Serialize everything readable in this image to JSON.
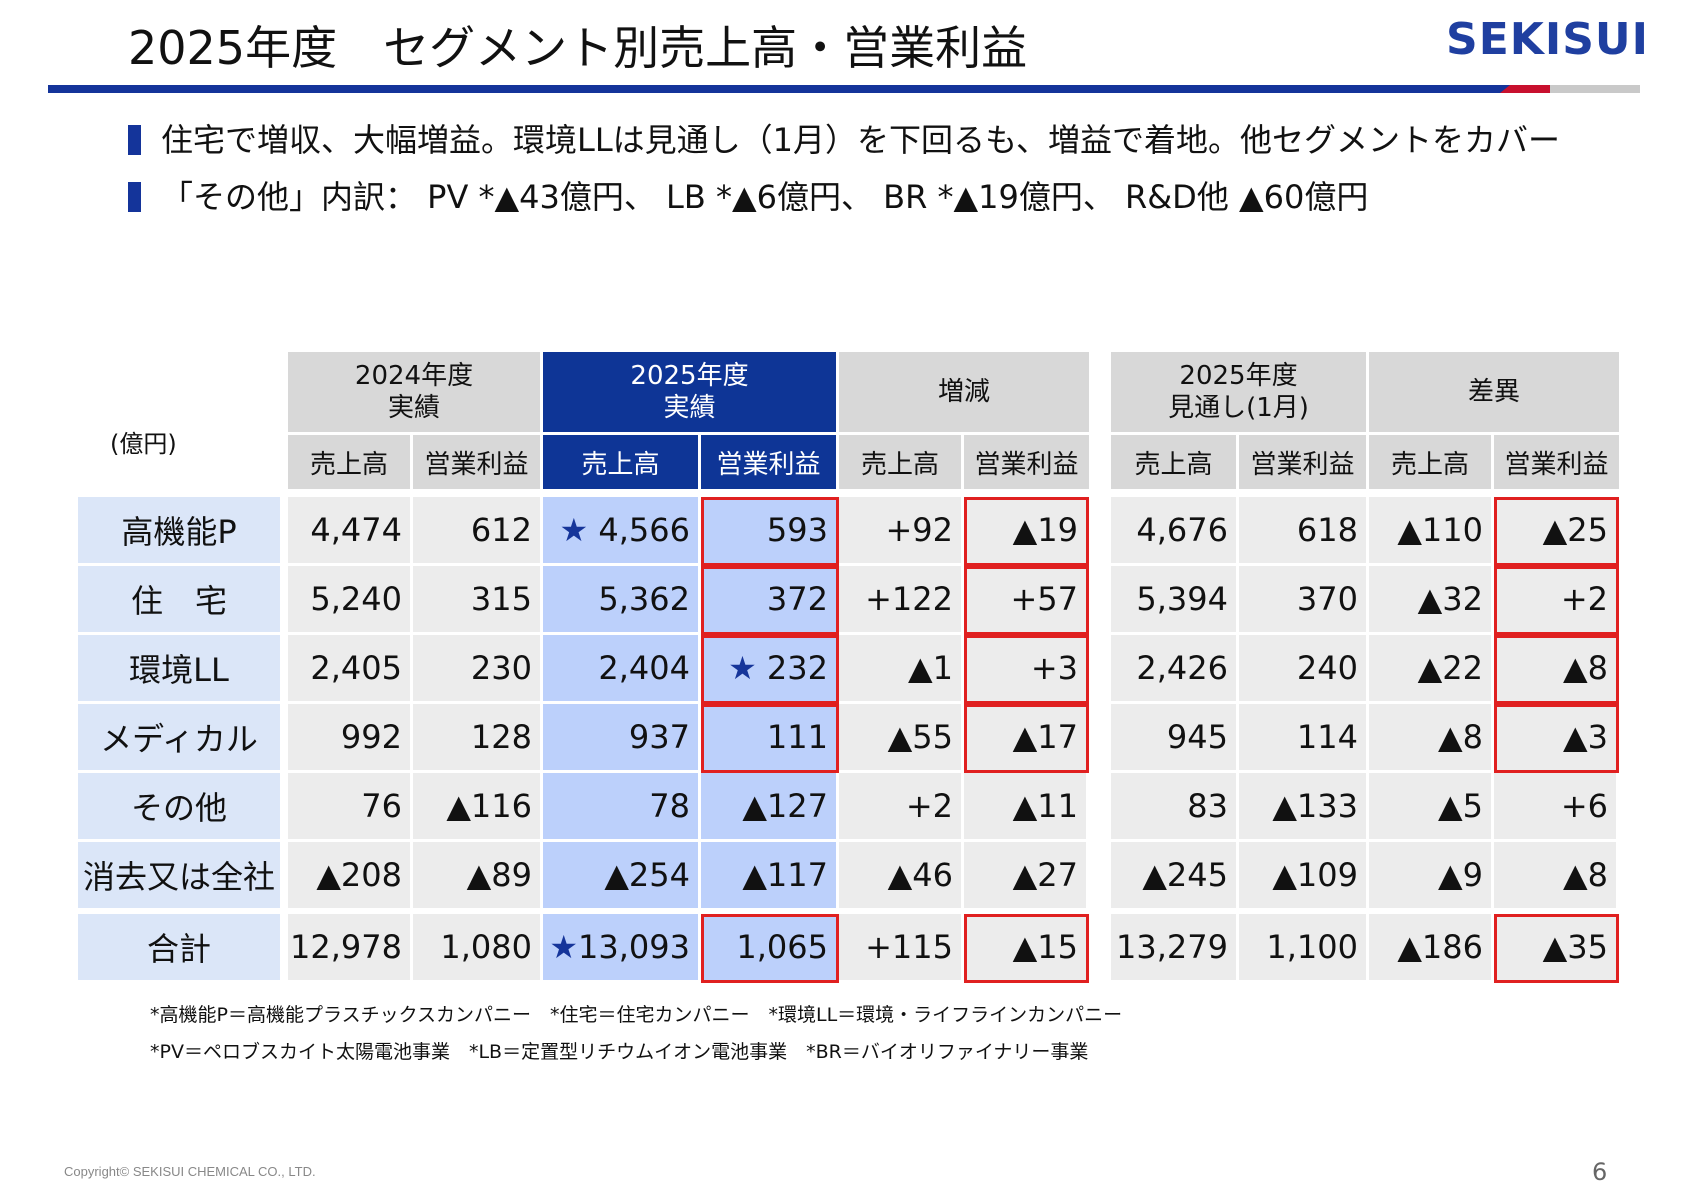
{
  "header": {
    "title": "2025年度　セグメント別売上高・営業利益",
    "logo": "SEKISUI"
  },
  "bullets": [
    "住宅で増収、大幅増益。環境LLは見通し（1月）を下回るも、増益で着地。他セグメントをカバー",
    "「その他」内訳：  PV *▲43億円、 LB *▲6億円、 BR *▲19億円、 R&D他 ▲60億円"
  ],
  "table": {
    "unit": "(億円)",
    "groups": [
      "2024年度\n実績",
      "2025年度\n実績",
      "増減",
      "2025年度\n見通し(1月)",
      "差異"
    ],
    "subheaders": [
      "売上高",
      "営業利益",
      "売上高",
      "営業利益",
      "売上高",
      "営業利益",
      "売上高",
      "営業利益",
      "売上高",
      "営業利益"
    ],
    "rows": [
      {
        "label": "高機能P",
        "v": [
          "4,474",
          "612",
          "★ 4,566",
          "593",
          "+92",
          "▲19",
          "4,676",
          "618",
          "▲110",
          "▲25"
        ]
      },
      {
        "label": "住　宅",
        "v": [
          "5,240",
          "315",
          "5,362",
          "372",
          "+122",
          "+57",
          "5,394",
          "370",
          "▲32",
          "+2"
        ]
      },
      {
        "label": "環境LL",
        "v": [
          "2,405",
          "230",
          "2,404",
          "★ 232",
          "▲1",
          "+3",
          "2,426",
          "240",
          "▲22",
          "▲8"
        ]
      },
      {
        "label": "メディカル",
        "v": [
          "992",
          "128",
          "937",
          "111",
          "▲55",
          "▲17",
          "945",
          "114",
          "▲8",
          "▲3"
        ]
      },
      {
        "label": "その他",
        "v": [
          "76",
          "▲116",
          "78",
          "▲127",
          "+2",
          "▲11",
          "83",
          "▲133",
          "▲5",
          "+6"
        ]
      },
      {
        "label": "消去又は全社",
        "v": [
          "▲208",
          "▲89",
          "▲254",
          "▲117",
          "▲46",
          "▲27",
          "▲245",
          "▲109",
          "▲9",
          "▲8"
        ]
      },
      {
        "label": "合計",
        "v": [
          "12,978",
          "1,080",
          "★13,093",
          "1,065",
          "+115",
          "▲15",
          "13,279",
          "1,100",
          "▲186",
          "▲35"
        ]
      }
    ]
  },
  "footnotes": [
    "*高機能P＝高機能プラスチックスカンパニー　*住宅＝住宅カンパニー　*環境LL＝環境・ライフラインカンパニー",
    "*PV＝ペロブスカイト太陽電池事業　*LB＝定置型リチウムイオン電池事業　*BR＝バイオリファイナリー事業"
  ],
  "copyright": "Copyright© SEKISUI CHEMICAL CO., LTD.",
  "page_number": "6",
  "colors": {
    "accent_blue": "#14349a",
    "highlight_blue": "#bcd0fb",
    "red_outline": "#e02020"
  }
}
